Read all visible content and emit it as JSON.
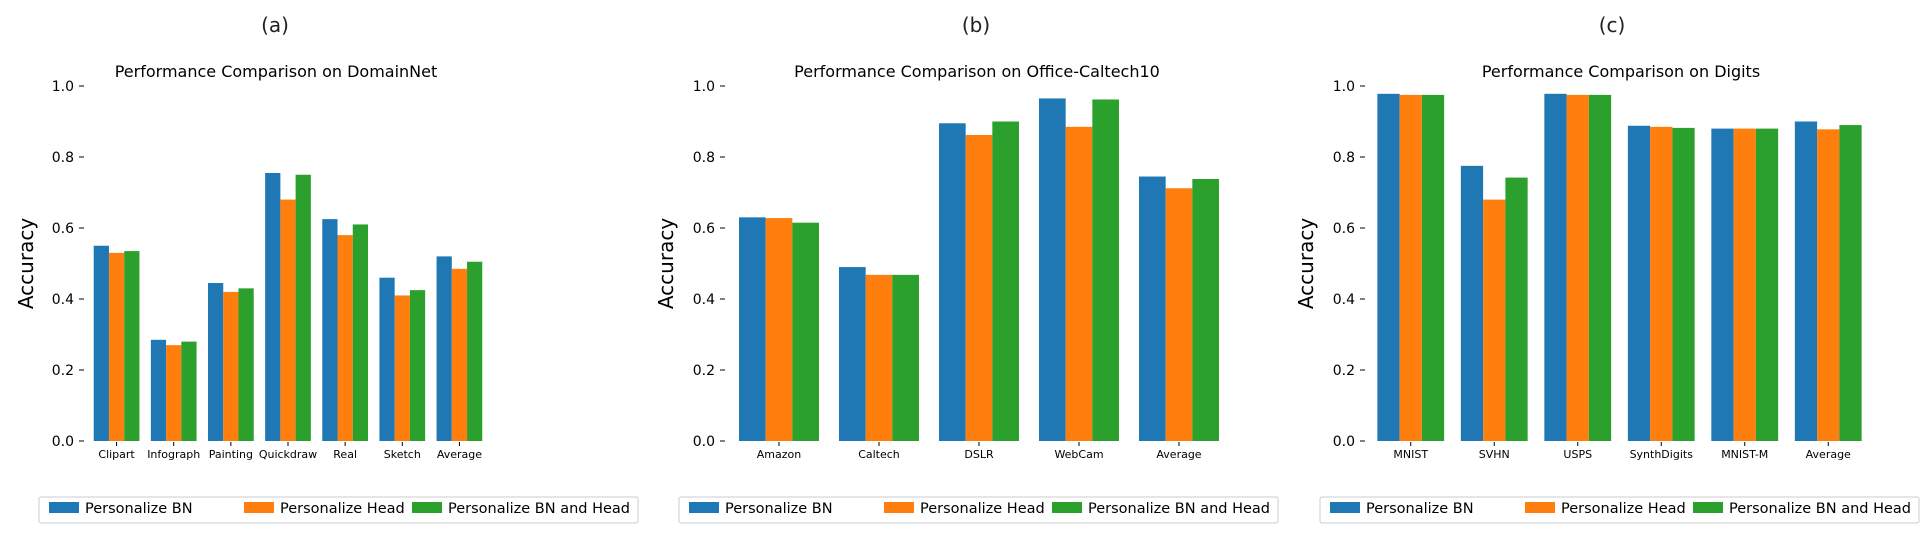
{
  "figure": {
    "series_names": [
      "Personalize BN",
      "Personalize Head",
      "Personalize BN and Head"
    ],
    "colors": [
      "#1f77b4",
      "#ff7f0e",
      "#2ca02c"
    ]
  },
  "chart_data": [
    {
      "type": "bar",
      "panel_label": "(a)",
      "title": "Performance Comparison on DomainNet",
      "xlabel": "",
      "ylabel": "Accuracy",
      "ylim": [
        0,
        1.0
      ],
      "yticks": [
        "0.0",
        "0.2",
        "0.4",
        "0.6",
        "0.8",
        "1.0"
      ],
      "categories": [
        "Clipart",
        "Infograph",
        "Painting",
        "Quickdraw",
        "Real",
        "Sketch",
        "Average"
      ],
      "series": [
        {
          "name": "Personalize BN",
          "values": [
            0.55,
            0.285,
            0.445,
            0.755,
            0.625,
            0.46,
            0.52
          ]
        },
        {
          "name": "Personalize Head",
          "values": [
            0.53,
            0.27,
            0.42,
            0.68,
            0.58,
            0.41,
            0.485
          ]
        },
        {
          "name": "Personalize BN and Head",
          "values": [
            0.535,
            0.28,
            0.43,
            0.75,
            0.61,
            0.425,
            0.505
          ]
        }
      ],
      "legend": [
        "Personalize BN",
        "Personalize Head",
        "Personalize BN and Head"
      ],
      "legend_position": "bottom"
    },
    {
      "type": "bar",
      "panel_label": "(b)",
      "title": "Performance Comparison on Office-Caltech10",
      "xlabel": "",
      "ylabel": "Accuracy",
      "ylim": [
        0,
        1.0
      ],
      "yticks": [
        "0.0",
        "0.2",
        "0.4",
        "0.6",
        "0.8",
        "1.0"
      ],
      "categories": [
        "Amazon",
        "Caltech",
        "DSLR",
        "WebCam",
        "Average"
      ],
      "series": [
        {
          "name": "Personalize BN",
          "values": [
            0.63,
            0.49,
            0.895,
            0.965,
            0.745
          ]
        },
        {
          "name": "Personalize Head",
          "values": [
            0.628,
            0.468,
            0.862,
            0.885,
            0.712
          ]
        },
        {
          "name": "Personalize BN and Head",
          "values": [
            0.615,
            0.468,
            0.9,
            0.962,
            0.738
          ]
        }
      ],
      "legend": [
        "Personalize BN",
        "Personalize Head",
        "Personalize BN and Head"
      ],
      "legend_position": "bottom"
    },
    {
      "type": "bar",
      "panel_label": "(c)",
      "title": "Performance Comparison on Digits",
      "xlabel": "",
      "ylabel": "Accuracy",
      "ylim": [
        0,
        1.0
      ],
      "yticks": [
        "0.0",
        "0.2",
        "0.4",
        "0.6",
        "0.8",
        "1.0"
      ],
      "categories": [
        "MNIST",
        "SVHN",
        "USPS",
        "SynthDigits",
        "MNIST-M",
        "Average"
      ],
      "series": [
        {
          "name": "Personalize BN",
          "values": [
            0.978,
            0.775,
            0.978,
            0.888,
            0.88,
            0.9
          ]
        },
        {
          "name": "Personalize Head",
          "values": [
            0.975,
            0.68,
            0.975,
            0.885,
            0.88,
            0.878
          ]
        },
        {
          "name": "Personalize BN and Head",
          "values": [
            0.975,
            0.742,
            0.975,
            0.882,
            0.88,
            0.89
          ]
        }
      ],
      "legend": [
        "Personalize BN",
        "Personalize Head",
        "Personalize BN and Head"
      ],
      "legend_position": "bottom"
    }
  ]
}
